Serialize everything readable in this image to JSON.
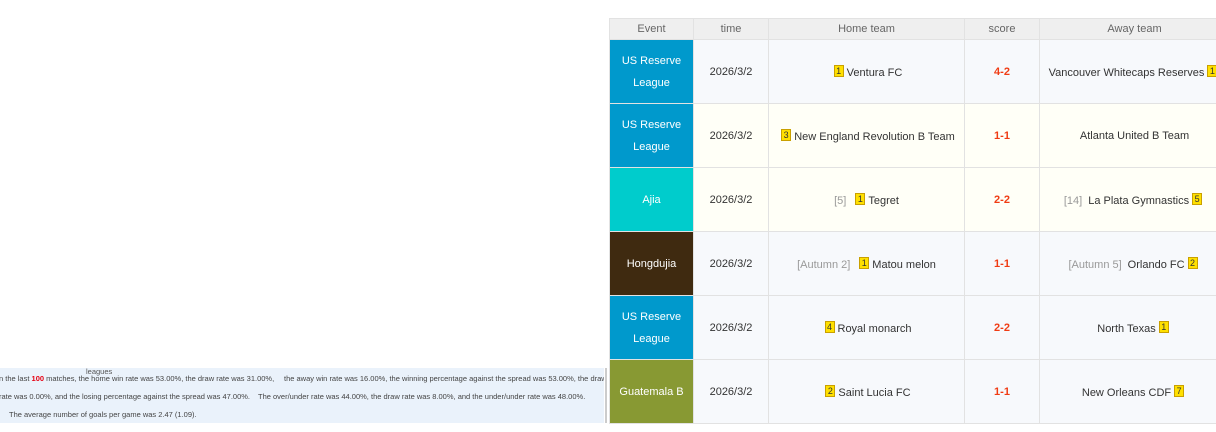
{
  "stats": {
    "label": "leagues",
    "line1_pre": "n the last ",
    "matches": "100",
    "line1_post": " matches, the home win rate was 53.00%, the draw rate was 31.00%,",
    "line1_b": "the away win rate was 16.00%, the winning percentage against the spread was 53.00%, the draw",
    "line2_a": "rate was 0.00%, and the losing percentage against the spread was 47.00%.",
    "line2_b": "The over/under rate was 44.00%, the draw rate was 8.00%, and the under/under rate was 48.00%.",
    "line3": "The average number of goals per game was 2.47 (1.09)."
  },
  "table": {
    "headers": [
      "Event",
      "time",
      "Home team",
      "score",
      "Away team"
    ],
    "rows": [
      {
        "event": "US Reserve League",
        "color": "#0099cc",
        "time": "2026/3/2",
        "home_rank": "",
        "home_badge": "1",
        "home": "Ventura FC",
        "score": "4-2",
        "away_rank": "",
        "away": "Vancouver Whitecaps Reserves",
        "away_badge": "1"
      },
      {
        "event": "US Reserve League",
        "color": "#0099cc",
        "time": "2026/3/2",
        "home_rank": "",
        "home_badge": "3",
        "home": "New England Revolution B Team",
        "score": "1-1",
        "away_rank": "",
        "away": "Atlanta United B Team",
        "away_badge": ""
      },
      {
        "event": "Ajia",
        "color": "#00cccc",
        "time": "2026/3/2",
        "home_rank": "[5]",
        "home_badge": "1",
        "home": "Tegret",
        "score": "2-2",
        "away_rank": "[14]",
        "away": "La Plata Gymnastics",
        "away_badge": "5"
      },
      {
        "event": "Hongdujia",
        "color": "#3f2a10",
        "time": "2026/3/2",
        "home_rank": "[Autumn 2]",
        "home_badge": "1",
        "home": "Matou melon",
        "score": "1-1",
        "away_rank": "[Autumn 5]",
        "away": "Orlando FC",
        "away_badge": "2"
      },
      {
        "event": "US Reserve League",
        "color": "#0099cc",
        "time": "2026/3/2",
        "home_rank": "",
        "home_badge": "4",
        "home": "Royal monarch",
        "score": "2-2",
        "away_rank": "",
        "away": "North Texas",
        "away_badge": "1"
      },
      {
        "event": "Guatemala B",
        "color": "#889933",
        "time": "2026/3/2",
        "home_rank": "",
        "home_badge": "2",
        "home": "Saint Lucia FC",
        "score": "1-1",
        "away_rank": "",
        "away": "New Orleans CDF",
        "away_badge": "7"
      }
    ]
  }
}
